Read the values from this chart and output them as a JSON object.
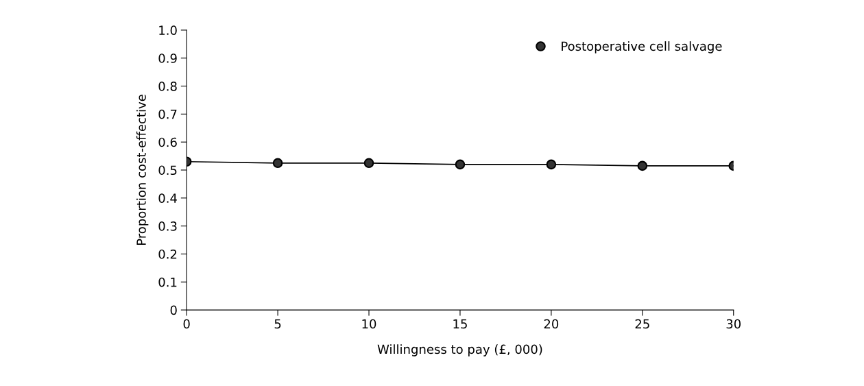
{
  "chart_data": {
    "type": "line",
    "xlabel": "Willingness to pay (£, 000)",
    "ylabel": "Proportion cost-effective",
    "x": [
      0,
      5,
      10,
      15,
      20,
      25,
      30
    ],
    "series": [
      {
        "name": "Postoperative cell salvage",
        "color": "#333333",
        "values": [
          0.53,
          0.525,
          0.525,
          0.52,
          0.52,
          0.515,
          0.515
        ]
      }
    ],
    "xlim": [
      0,
      30
    ],
    "xticks": [
      0,
      5,
      {
        "value": 10,
        "label": "10"
      },
      15,
      20,
      25,
      30
    ],
    "ylim": [
      0,
      1.0
    ],
    "yticks": [
      0,
      {
        "value": 0.1,
        "label": "0.1"
      },
      {
        "value": 0.2,
        "label": "0.2"
      },
      {
        "value": 0.3,
        "label": "0.3"
      },
      {
        "value": 0.4,
        "label": "0.4"
      },
      {
        "value": 0.5,
        "label": "0.5"
      },
      {
        "value": 0.6,
        "label": "0.6"
      },
      {
        "value": 0.7,
        "label": "0.7"
      },
      {
        "value": 0.8,
        "label": "0.8"
      },
      {
        "value": 0.9,
        "label": "0.9"
      },
      {
        "value": 1.0,
        "label": "1.0"
      }
    ],
    "grid": false,
    "legend": "top right",
    "marker": "circle",
    "line_style": "solid"
  }
}
